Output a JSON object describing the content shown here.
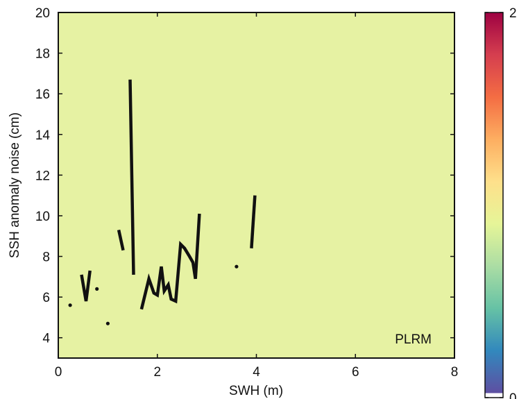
{
  "chart_data": {
    "type": "line",
    "annotation": "PLRM",
    "xlabel": "SWH (m)",
    "ylabel": "SSH anomaly noise (cm)",
    "xlim": [
      0,
      8
    ],
    "ylim": [
      3,
      20
    ],
    "xticks": [
      0,
      2,
      4,
      6,
      8
    ],
    "yticks": [
      4,
      6,
      8,
      10,
      12,
      14,
      16,
      18,
      20
    ],
    "background_color": "#e6f2a3",
    "line_color": "#111111",
    "colorbar": {
      "min": 0,
      "max": 2,
      "ticks": [
        0,
        2
      ],
      "colors": [
        "#ffffff",
        "#5e4fa2",
        "#3288bd",
        "#66c2a5",
        "#abdda4",
        "#e6f598",
        "#fee08b",
        "#fdae61",
        "#f46d43",
        "#d53e4f",
        "#9e0142"
      ]
    },
    "segments": [
      [
        [
          0.47,
          7.1
        ],
        [
          0.56,
          5.8
        ],
        [
          0.64,
          7.3
        ]
      ],
      [
        [
          1.22,
          9.3
        ],
        [
          1.31,
          8.3
        ]
      ],
      [
        [
          1.45,
          16.7
        ],
        [
          1.52,
          7.1
        ]
      ],
      [
        [
          1.68,
          5.4
        ],
        [
          1.83,
          6.9
        ],
        [
          1.93,
          6.2
        ],
        [
          2.0,
          6.1
        ],
        [
          2.08,
          7.5
        ],
        [
          2.14,
          6.3
        ],
        [
          2.22,
          6.6
        ],
        [
          2.28,
          5.9
        ],
        [
          2.37,
          5.8
        ],
        [
          2.47,
          8.6
        ],
        [
          2.55,
          8.4
        ],
        [
          2.65,
          8.0
        ],
        [
          2.72,
          7.7
        ],
        [
          2.77,
          6.9
        ],
        [
          2.85,
          10.1
        ]
      ],
      [
        [
          3.9,
          8.4
        ],
        [
          3.97,
          11.0
        ]
      ]
    ],
    "points": [
      [
        0.24,
        5.6
      ],
      [
        0.78,
        6.4
      ],
      [
        1.0,
        4.7
      ],
      [
        3.6,
        7.5
      ]
    ]
  }
}
